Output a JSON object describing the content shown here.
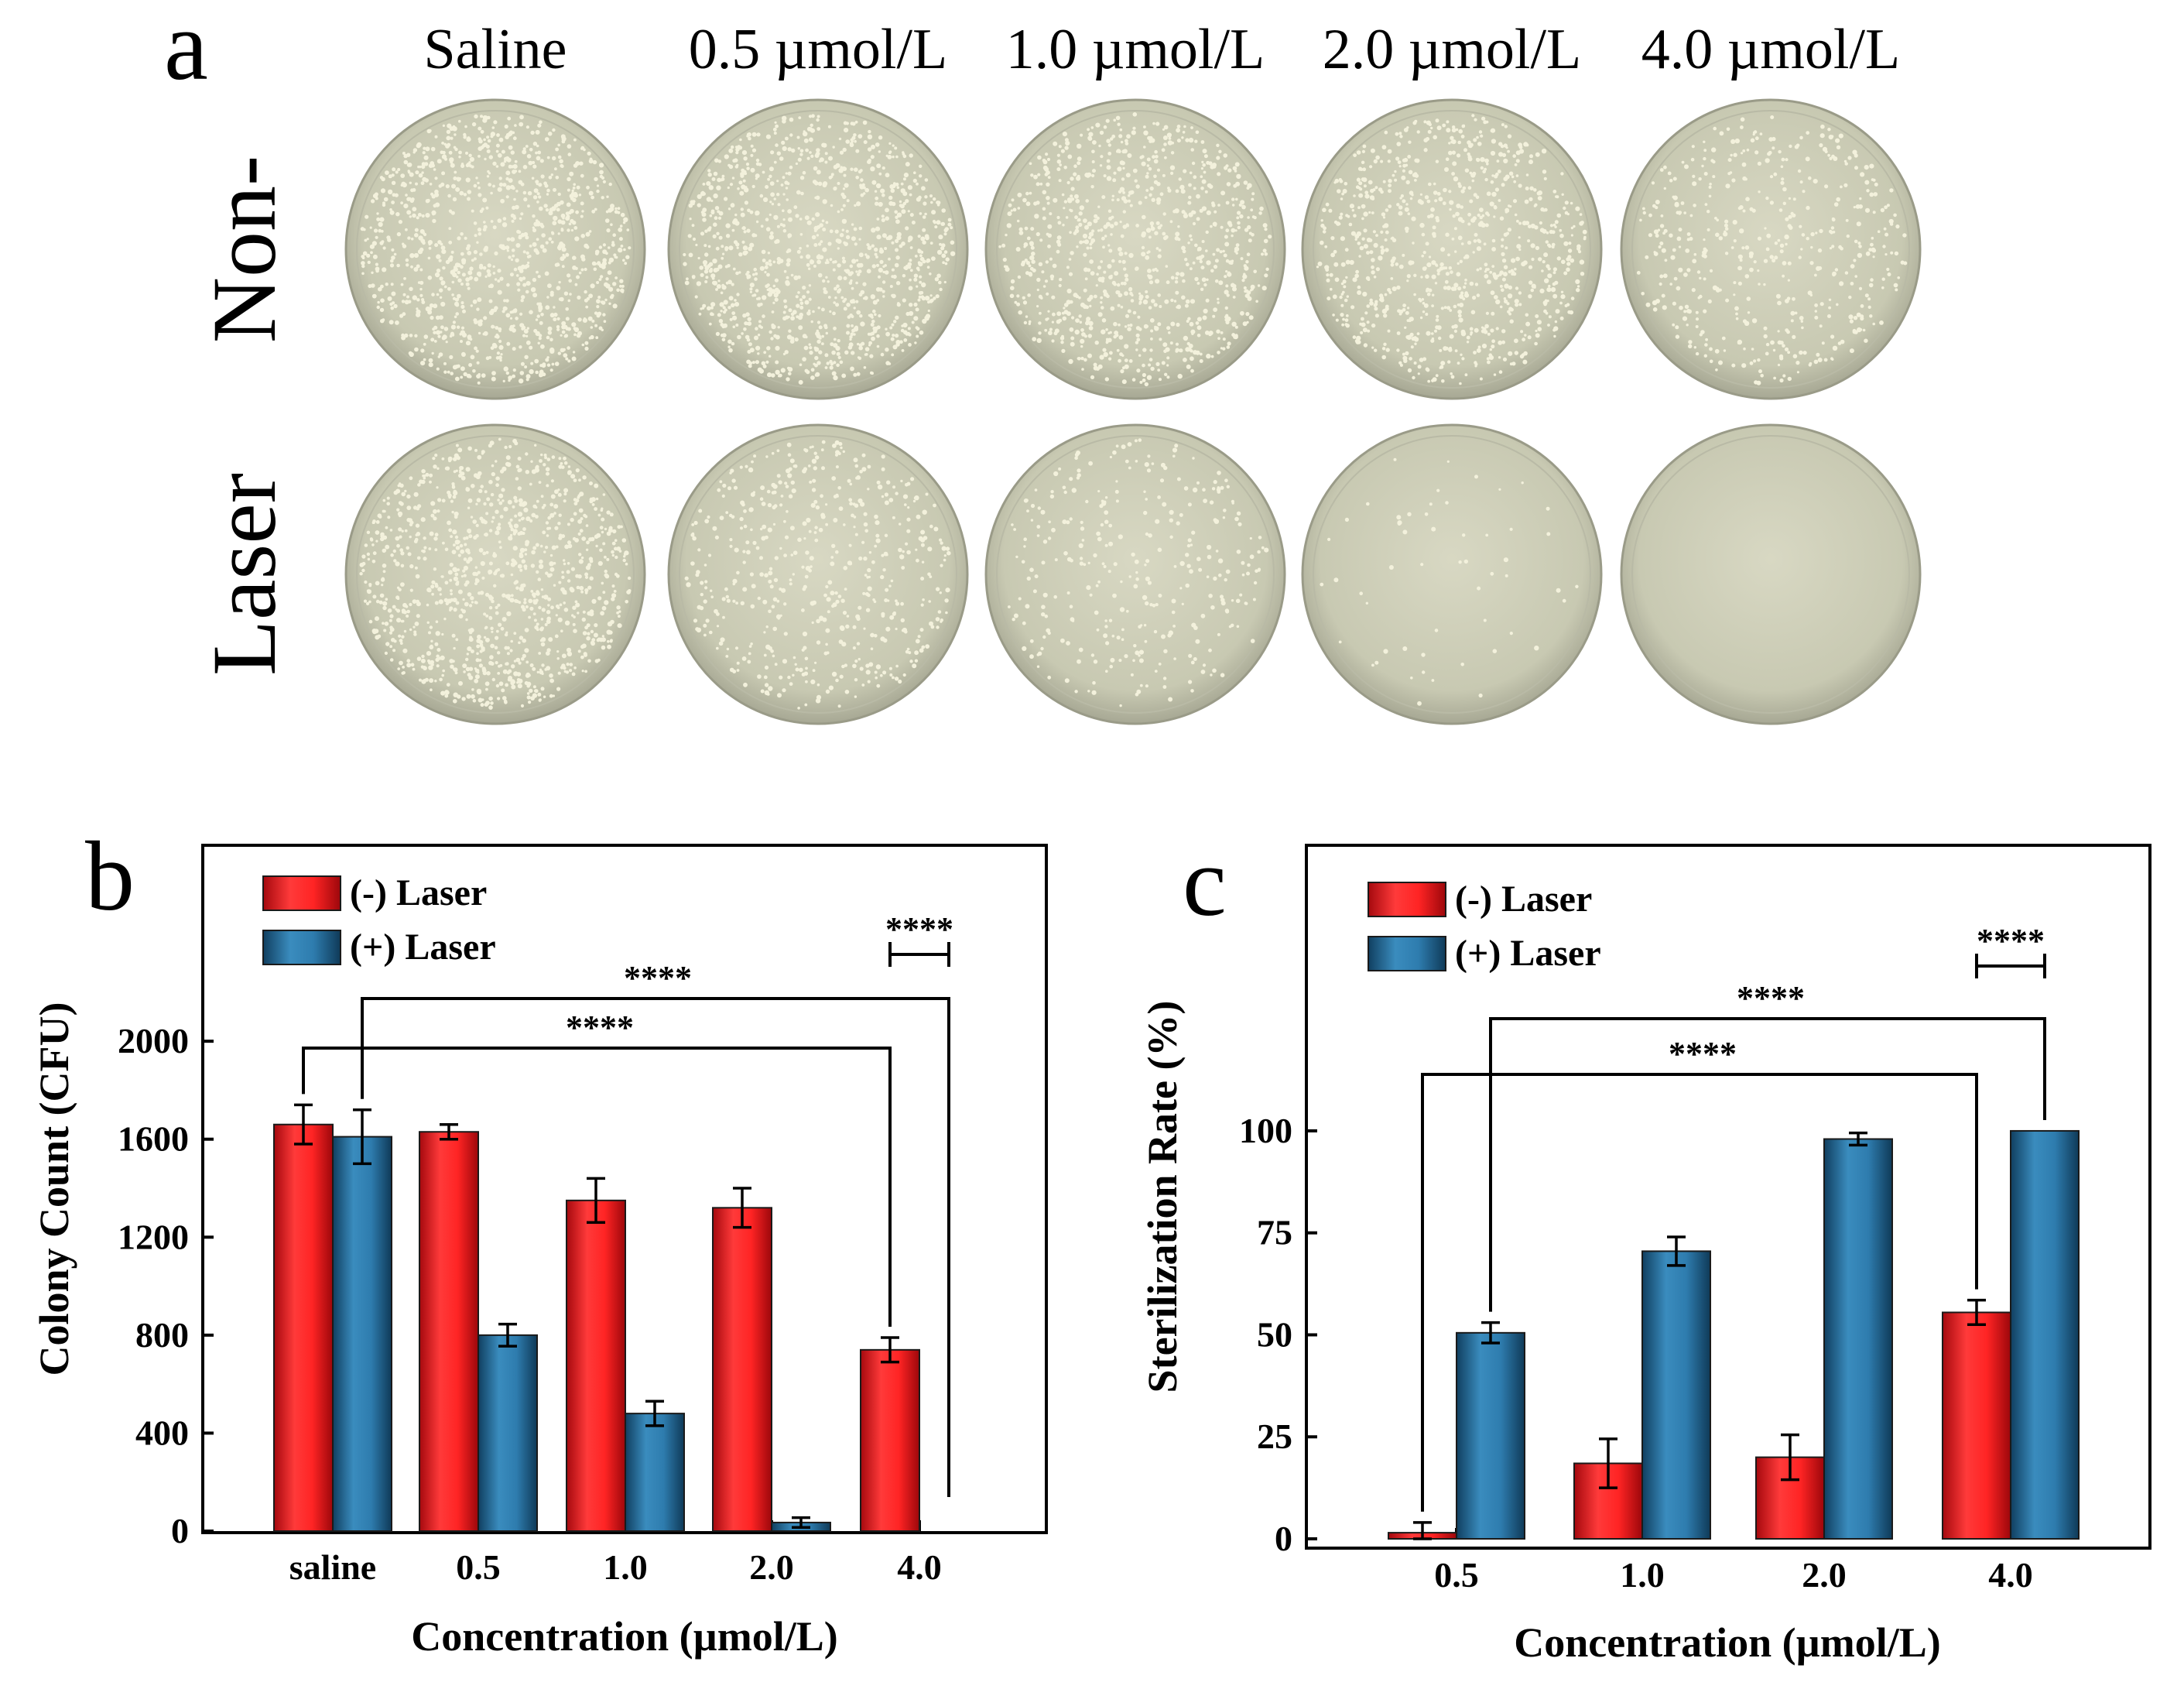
{
  "panel_a": {
    "letter": "a",
    "columns": [
      "Saline",
      "0.5 µmol/L",
      "1.0 µmol/L",
      "2.0 µmol/L",
      "4.0 µmol/L"
    ],
    "rows": [
      "Non-",
      "Laser"
    ],
    "colony_density": {
      "Non-": [
        1.0,
        0.98,
        0.82,
        0.8,
        0.45
      ],
      "Laser": [
        0.97,
        0.48,
        0.29,
        0.05,
        0.0
      ]
    }
  },
  "chart_data": [
    {
      "panel": "b",
      "type": "bar",
      "xlabel": "Concentration (µmol/L)",
      "ylabel": "Colony Count (CFU)",
      "categories": [
        "saline",
        "0.5",
        "1.0",
        "2.0",
        "4.0"
      ],
      "yticks": [
        "0",
        "400",
        "800",
        "1200",
        "1600",
        "2000"
      ],
      "ylim": [
        0,
        2800
      ],
      "series": [
        {
          "name": "(-) Laser",
          "color": "#e31e24",
          "values": [
            1660,
            1630,
            1350,
            1320,
            740
          ],
          "errors": [
            80,
            30,
            90,
            80,
            50
          ]
        },
        {
          "name": "(+) Laser",
          "color": "#1f6e9c",
          "values": [
            1610,
            800,
            480,
            35,
            0
          ],
          "errors": [
            110,
            45,
            50,
            20,
            0
          ]
        }
      ],
      "significance": [
        {
          "label": "****",
          "from_series": 0,
          "from_category": 0,
          "to_series": 0,
          "to_category": 4
        },
        {
          "label": "****",
          "from_series": 1,
          "from_category": 0,
          "to_series": 1,
          "to_category": 4
        },
        {
          "label": "****",
          "from_series": 0,
          "from_category": 4,
          "to_series": 1,
          "to_category": 4
        }
      ],
      "legend_position": "top-left"
    },
    {
      "panel": "c",
      "type": "bar",
      "xlabel": "Concentration (µmol/L)",
      "ylabel": "Sterilization Rate (%)",
      "categories": [
        "0.5",
        "1.0",
        "2.0",
        "4.0"
      ],
      "yticks": [
        "0",
        "25",
        "50",
        "75",
        "100"
      ],
      "ylim": [
        0,
        170
      ],
      "series": [
        {
          "name": "(-) Laser",
          "color": "#e31e24",
          "values": [
            1.5,
            18.5,
            20,
            55.5
          ],
          "errors": [
            2.5,
            6,
            5.5,
            3
          ]
        },
        {
          "name": "(+) Laser",
          "color": "#1f6e9c",
          "values": [
            50.5,
            70.5,
            98,
            100
          ],
          "errors": [
            2.5,
            3.5,
            1.5,
            0
          ]
        }
      ],
      "significance": [
        {
          "label": "****",
          "from_series": 0,
          "from_category": 0,
          "to_series": 0,
          "to_category": 3
        },
        {
          "label": "****",
          "from_series": 1,
          "from_category": 0,
          "to_series": 1,
          "to_category": 3
        },
        {
          "label": "****",
          "from_series": 0,
          "from_category": 3,
          "to_series": 1,
          "to_category": 3
        }
      ],
      "legend_position": "top-left"
    }
  ]
}
